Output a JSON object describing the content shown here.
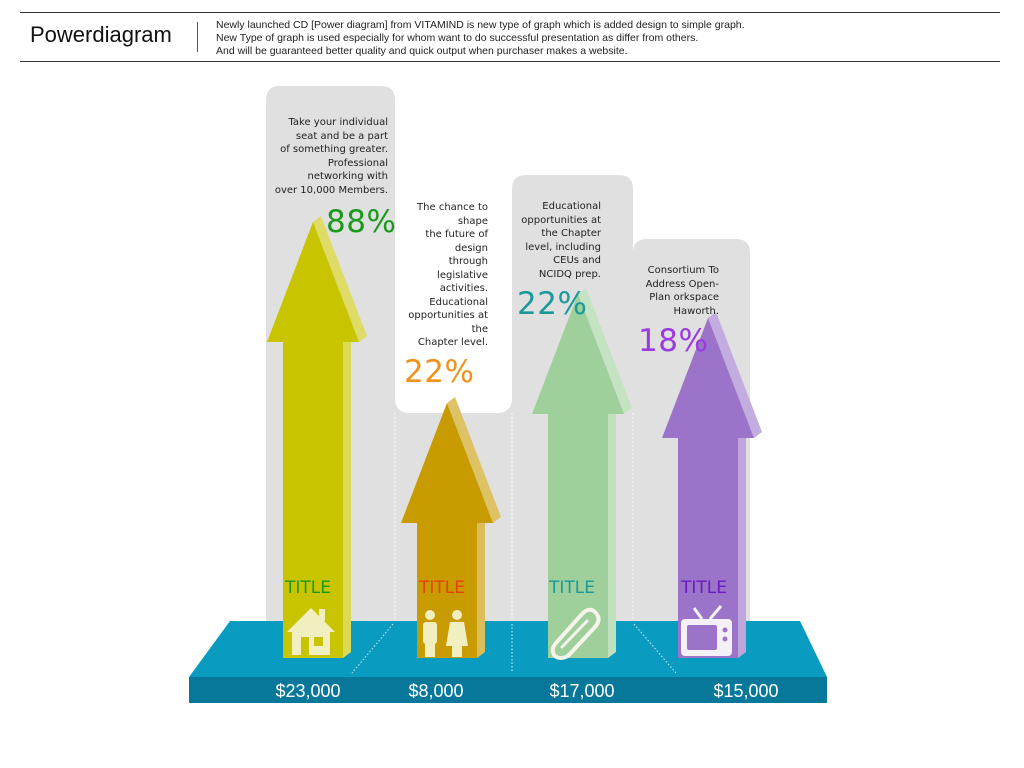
{
  "header": {
    "brand": "Powerdiagram",
    "desc_line1": "Newly launched CD [Power diagram] from VITAMIND is new type of graph which is added design to simple graph.",
    "desc_line2": "New Type of graph is used especially for whom want to do successful presentation as differ from others.",
    "desc_line3": "And will be guaranteed better quality and quick output when purchaser makes a website."
  },
  "chart_data": {
    "type": "bar",
    "title": "",
    "xlabel": "",
    "ylabel": "",
    "grid": false,
    "legend": "none",
    "categories": [
      "TITLE",
      "TITLE",
      "TITLE",
      "TITLE"
    ],
    "values": [
      23000,
      8000,
      17000,
      15000
    ],
    "value_labels": [
      "$23,000",
      "$8,000",
      "$17,000",
      "$15,000"
    ],
    "percents": [
      "88%",
      "22%",
      "22%",
      "18%"
    ],
    "percent_values": [
      88,
      22,
      22,
      18
    ],
    "notes": [
      "Take your individual\nseat and be a part\nof something greater.\nProfessional\nnetworking with\nover 10,000 Members.",
      "The chance to\nshape\nthe future of\ndesign\nthrough\nlegislative\nactivities.\nEducational\nopportunities at\nthe\nChapter level.",
      "Educational\nopportunities at\nthe Chapter\nlevel, including\nCEUs and\nNCIDQ prep.",
      "Consortium To\nAddress Open-\nPlan orkspace\nHaworth."
    ],
    "icons": [
      "house-icon",
      "people-icon",
      "pencil-icon",
      "tv-icon"
    ],
    "arrow_colors": [
      "#c8c400",
      "#c89b00",
      "#9fcf9b",
      "#9b74c9"
    ],
    "percent_colors": [
      "#1a9a1a",
      "#f0921a",
      "#1a9a9a",
      "#9a3adf"
    ],
    "title_colors": [
      "#1a9a1a",
      "#e8400a",
      "#1a9a9a",
      "#6a1abf"
    ],
    "platform_top_color": "#0a9bc0",
    "platform_front_color": "#07789a",
    "panel_color": "#e0e0e0"
  }
}
